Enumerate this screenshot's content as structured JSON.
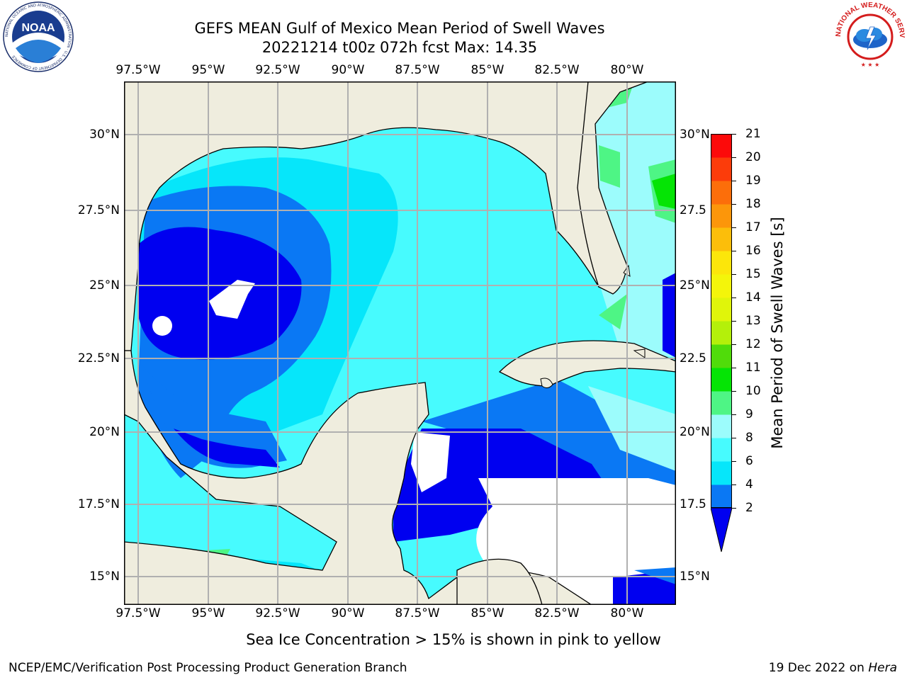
{
  "title": "GEFS MEAN Gulf of Mexico Mean Period of Swell Waves",
  "subtitle": "20221214 t00z 072h fcst   Max: 14.35",
  "logos": {
    "left": {
      "text": "NOAA",
      "ring_text": "NATIONAL OCEANIC AND ATMOSPHERIC ADMINISTRATION · U.S. DEPARTMENT OF COMMERCE"
    },
    "right": {
      "ring_text": "NATIONAL WEATHER SERVICE"
    }
  },
  "map": {
    "lon_labels": [
      "97.5°W",
      "95°W",
      "92.5°W",
      "90°W",
      "87.5°W",
      "85°W",
      "82.5°W",
      "80°W"
    ],
    "lat_labels_left": [
      "30°N",
      "27.5°N",
      "25°N",
      "22.5°N",
      "20°N",
      "17.5°N",
      "15°N"
    ],
    "lat_labels_right": [
      "30°N",
      "27.5",
      "25°N",
      "22.5",
      "20°N",
      "17.5",
      "15°N"
    ],
    "colors": {
      "land": "#efedde",
      "frame": "#000000",
      "grid": "#b0b0b0",
      "nodata": "#ffffff"
    }
  },
  "colorbar": {
    "label": "Mean Period of Swell Waves [s]",
    "ticks": [
      "2",
      "4",
      "6",
      "8",
      "9",
      "10",
      "11",
      "12",
      "13",
      "14",
      "15",
      "16",
      "17",
      "18",
      "19",
      "20",
      "21"
    ],
    "colors": [
      "#0a78f4",
      "#06e6fa",
      "#47fbfe",
      "#9cfcfc",
      "#4ef585",
      "#05e405",
      "#50dc0a",
      "#b4f00a",
      "#e0f50a",
      "#f4f50a",
      "#fce60a",
      "#fcbe0a",
      "#fc960a",
      "#fc6e0a",
      "#fc3c0a",
      "#fc0a0a"
    ],
    "extend_color": "#0000f0"
  },
  "note": "Sea Ice Concentration > 15% is shown in pink to yellow",
  "footer": {
    "left": "NCEP/EMC/Verification Post Processing Product Generation Branch",
    "right_date": "19 Dec 2022 on",
    "right_host": "Hera"
  }
}
